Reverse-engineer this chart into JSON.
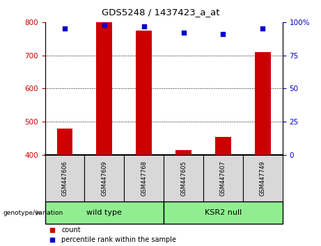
{
  "title": "GDS5248 / 1437423_a_at",
  "samples": [
    "GSM447606",
    "GSM447609",
    "GSM447768",
    "GSM447605",
    "GSM447607",
    "GSM447749"
  ],
  "count_values": [
    480,
    800,
    775,
    415,
    455,
    710
  ],
  "percentile_values": [
    95,
    98,
    97,
    92,
    91,
    95
  ],
  "ylim_left": [
    400,
    800
  ],
  "ylim_right": [
    0,
    100
  ],
  "yticks_left": [
    400,
    500,
    600,
    700,
    800
  ],
  "yticks_right": [
    0,
    25,
    50,
    75,
    100
  ],
  "bar_color": "#cc0000",
  "scatter_color": "#0000cc",
  "bar_bottom": 400,
  "grid_lines": [
    500,
    600,
    700
  ],
  "wild_type_indices": [
    0,
    1,
    2
  ],
  "ksr2_indices": [
    3,
    4,
    5
  ],
  "group_color": "#90ee90",
  "sample_bg_color": "#d8d8d8",
  "left_tick_color": "#cc0000",
  "right_tick_color": "#0000cc",
  "legend_count_label": "count",
  "legend_percentile_label": "percentile rank within the sample",
  "genotype_label": "genotype/variation",
  "wild_type_label": "wild type",
  "ksr2_label": "KSR2 null"
}
